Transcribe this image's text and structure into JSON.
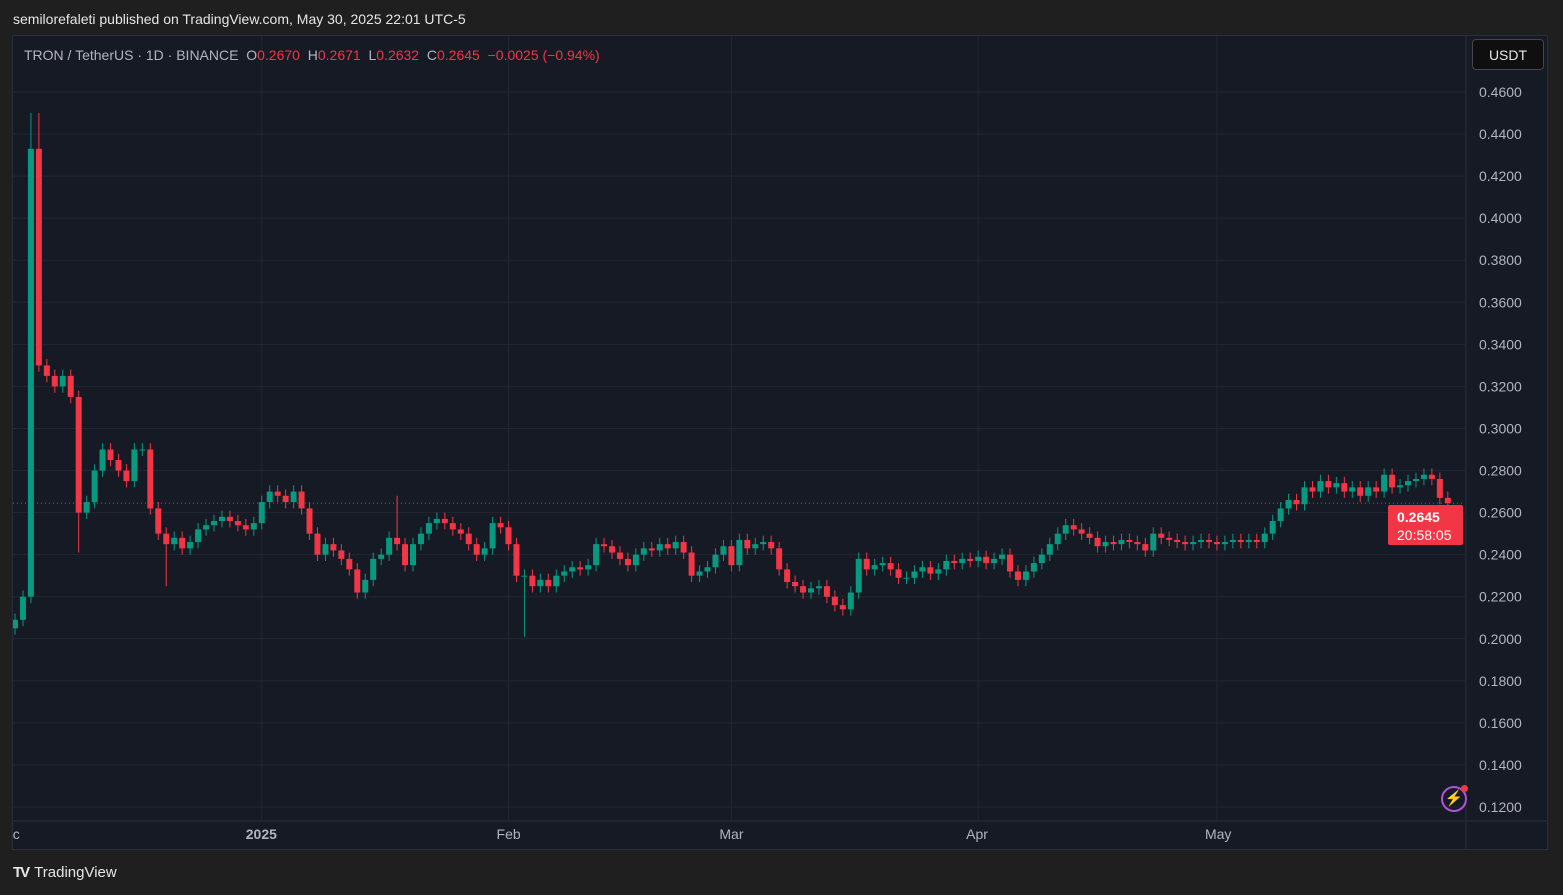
{
  "header": {
    "published": "semilorefaleti published on TradingView.com, May 30, 2025 22:01 UTC-5"
  },
  "legend": {
    "symbol": "TRON / TetherUS · 1D · BINANCE",
    "o_label": "O",
    "o": "0.2670",
    "h_label": "H",
    "h": "0.2671",
    "l_label": "L",
    "l": "0.2632",
    "c_label": "C",
    "c": "0.2645",
    "change": "−0.0025 (−0.94%)"
  },
  "currency_button": "USDT",
  "last_price": {
    "price": "0.2645",
    "countdown": "20:58:05"
  },
  "branding": {
    "logo_text": "TradingView"
  },
  "colors": {
    "up": "#089981",
    "down": "#f23645",
    "bg": "#161a25",
    "grid": "#232632"
  },
  "chart_data": {
    "type": "candlestick",
    "title": "TRON / TetherUS · 1D · BINANCE",
    "start_date": "2024-12-01",
    "ylim": [
      0.11,
      0.475
    ],
    "y_ticks": [
      "0.4600",
      "0.4400",
      "0.4200",
      "0.4000",
      "0.3800",
      "0.3600",
      "0.3400",
      "0.3200",
      "0.3000",
      "0.2800",
      "0.2600",
      "0.2400",
      "0.2200",
      "0.2000",
      "0.1800",
      "0.1600",
      "0.1400",
      "0.1200"
    ],
    "x_ticks": [
      {
        "label": "ec",
        "day": 0
      },
      {
        "label": "2025",
        "day": 31
      },
      {
        "label": "Feb",
        "day": 62
      },
      {
        "label": "Mar",
        "day": 90
      },
      {
        "label": "Apr",
        "day": 121
      },
      {
        "label": "May",
        "day": 151
      }
    ],
    "first_open": 0.205,
    "closes": [
      0.209,
      0.22,
      0.433,
      0.33,
      0.325,
      0.32,
      0.325,
      0.315,
      0.26,
      0.265,
      0.28,
      0.29,
      0.285,
      0.28,
      0.275,
      0.29,
      0.29,
      0.262,
      0.25,
      0.245,
      0.248,
      0.243,
      0.246,
      0.252,
      0.254,
      0.256,
      0.258,
      0.256,
      0.254,
      0.252,
      0.255,
      0.265,
      0.27,
      0.268,
      0.265,
      0.27,
      0.262,
      0.25,
      0.24,
      0.245,
      0.242,
      0.238,
      0.233,
      0.222,
      0.228,
      0.238,
      0.24,
      0.248,
      0.245,
      0.235,
      0.245,
      0.25,
      0.255,
      0.257,
      0.255,
      0.252,
      0.25,
      0.245,
      0.24,
      0.243,
      0.255,
      0.253,
      0.245,
      0.23,
      0.23,
      0.225,
      0.228,
      0.225,
      0.23,
      0.232,
      0.234,
      0.233,
      0.235,
      0.245,
      0.244,
      0.241,
      0.238,
      0.235,
      0.24,
      0.243,
      0.242,
      0.245,
      0.243,
      0.246,
      0.241,
      0.23,
      0.232,
      0.234,
      0.24,
      0.244,
      0.235,
      0.247,
      0.243,
      0.245,
      0.246,
      0.243,
      0.233,
      0.227,
      0.225,
      0.222,
      0.224,
      0.225,
      0.22,
      0.216,
      0.214,
      0.222,
      0.238,
      0.233,
      0.235,
      0.236,
      0.233,
      0.229,
      0.229,
      0.232,
      0.234,
      0.231,
      0.233,
      0.237,
      0.236,
      0.238,
      0.237,
      0.239,
      0.236,
      0.238,
      0.24,
      0.232,
      0.228,
      0.232,
      0.236,
      0.24,
      0.245,
      0.25,
      0.254,
      0.252,
      0.25,
      0.248,
      0.244,
      0.246,
      0.245,
      0.247,
      0.246,
      0.245,
      0.242,
      0.25,
      0.248,
      0.247,
      0.246,
      0.245,
      0.246,
      0.247,
      0.246,
      0.245,
      0.246,
      0.247,
      0.246,
      0.247,
      0.246,
      0.25,
      0.256,
      0.262,
      0.266,
      0.264,
      0.272,
      0.27,
      0.275,
      0.272,
      0.274,
      0.27,
      0.272,
      0.268,
      0.272,
      0.27,
      0.278,
      0.272,
      0.273,
      0.275,
      0.276,
      0.278,
      0.276,
      0.267,
      0.2645
    ],
    "wick_overrides": [
      {
        "day": 2,
        "high": 0.45
      },
      {
        "day": 3,
        "high": 0.45
      },
      {
        "day": 19,
        "low": 0.225
      },
      {
        "day": 64,
        "low": 0.201
      },
      {
        "day": 8,
        "low": 0.241
      },
      {
        "day": 48,
        "high": 0.268
      }
    ],
    "last_price": 0.2645
  }
}
